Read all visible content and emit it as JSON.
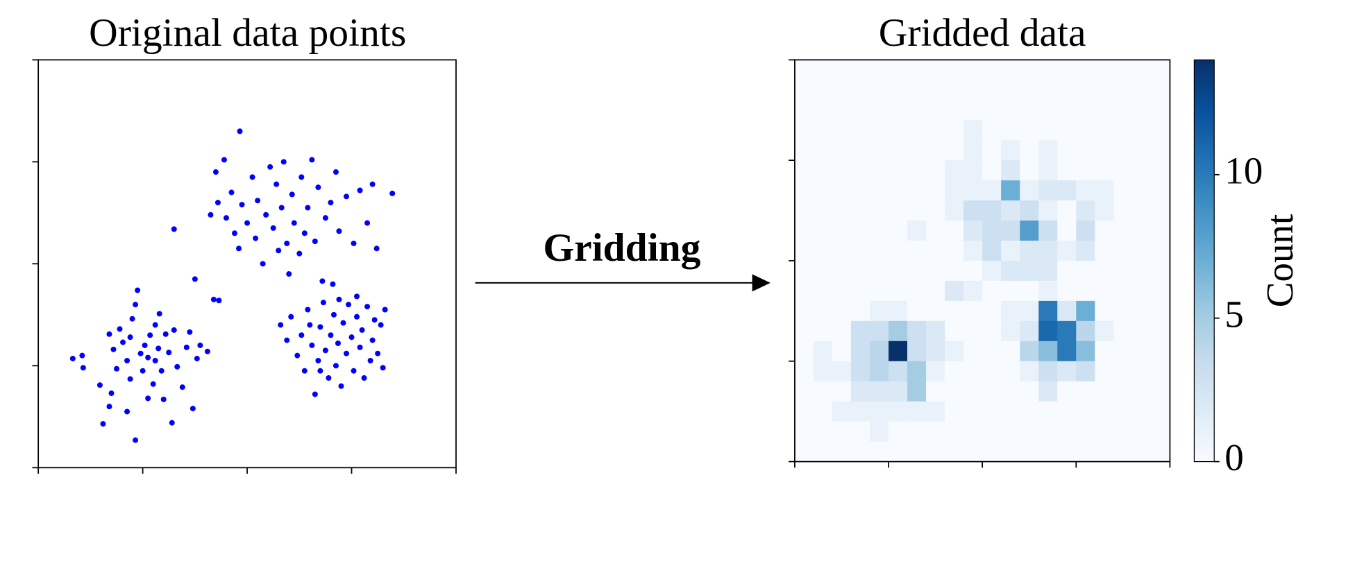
{
  "chart_data": [
    {
      "type": "scatter",
      "title": "Original data points",
      "color": "#0000ff",
      "xlim": [
        0,
        4
      ],
      "xticks": [
        0,
        1,
        2,
        3,
        4
      ],
      "ylim": [
        0,
        4
      ],
      "yticks": [
        0,
        1,
        2,
        3,
        4
      ],
      "x": [
        0.33,
        0.42,
        0.43,
        0.62,
        0.59,
        0.7,
        0.68,
        0.75,
        0.72,
        0.68,
        0.81,
        0.78,
        0.85,
        0.88,
        0.93,
        0.9,
        0.93,
        0.95,
        0.98,
        1.0,
        1.02,
        1.05,
        1.07,
        1.1,
        1.12,
        1.15,
        1.16,
        1.18,
        1.2,
        1.22,
        1.25,
        1.28,
        1.3,
        1.33,
        1.38,
        1.42,
        1.45,
        1.48,
        1.52,
        1.55,
        1.62,
        0.85,
        1.05,
        0.88,
        1.12,
        1.3,
        1.7,
        1.78,
        1.93,
        1.65,
        1.72,
        1.8,
        1.85,
        1.88,
        1.92,
        1.95,
        2.0,
        2.05,
        2.08,
        2.1,
        2.15,
        2.18,
        2.22,
        2.25,
        2.28,
        2.3,
        2.33,
        2.35,
        2.38,
        2.4,
        2.43,
        2.45,
        2.5,
        2.52,
        2.55,
        2.58,
        2.62,
        2.65,
        2.68,
        2.72,
        2.75,
        2.8,
        2.85,
        2.88,
        2.95,
        3.02,
        3.08,
        3.15,
        3.2,
        3.24,
        3.39,
        1.5,
        2.82,
        1.68,
        1.73,
        2.32,
        2.38,
        2.42,
        2.48,
        2.52,
        2.55,
        2.58,
        2.62,
        2.65,
        2.68,
        2.7,
        2.73,
        2.75,
        2.78,
        2.8,
        2.83,
        2.85,
        2.87,
        2.9,
        2.92,
        2.95,
        2.97,
        3.0,
        3.02,
        3.05,
        3.08,
        3.1,
        3.12,
        3.15,
        3.18,
        3.2,
        3.22,
        3.25,
        3.28,
        3.3,
        3.32,
        2.6,
        2.88,
        3.05,
        2.7
      ],
      "y": [
        1.07,
        1.1,
        0.98,
        0.43,
        0.81,
        0.73,
        0.6,
        0.97,
        1.16,
        1.31,
        1.23,
        1.36,
        1.05,
        0.87,
        0.27,
        1.46,
        1.6,
        1.74,
        1.12,
        0.95,
        1.2,
        1.08,
        1.3,
        0.82,
        1.05,
        1.17,
        1.51,
        0.95,
        0.67,
        1.31,
        1.13,
        0.44,
        1.35,
        0.99,
        0.79,
        1.18,
        1.33,
        0.58,
        1.07,
        1.2,
        1.14,
        0.55,
        0.68,
        1.28,
        1.4,
        2.34,
        2.9,
        3.02,
        3.3,
        2.48,
        2.6,
        2.45,
        2.7,
        2.3,
        2.15,
        2.58,
        2.4,
        2.85,
        2.25,
        2.62,
        2.0,
        2.48,
        2.95,
        2.35,
        2.78,
        2.13,
        2.55,
        3.0,
        2.2,
        1.9,
        2.68,
        2.4,
        2.1,
        2.85,
        2.3,
        2.55,
        3.02,
        2.22,
        2.75,
        1.83,
        2.45,
        2.6,
        2.9,
        2.32,
        2.66,
        2.2,
        2.72,
        2.4,
        2.78,
        2.15,
        2.69,
        1.85,
        1.8,
        1.65,
        1.64,
        1.4,
        1.25,
        1.48,
        1.1,
        1.3,
        0.95,
        1.55,
        1.2,
        0.72,
        1.05,
        1.38,
        1.62,
        1.15,
        0.88,
        1.3,
        1.5,
        1.0,
        1.22,
        0.8,
        1.42,
        1.12,
        1.6,
        1.28,
        0.95,
        1.48,
        1.18,
        1.35,
        0.88,
        1.58,
        1.05,
        1.25,
        1.45,
        1.12,
        1.4,
        0.98,
        1.55,
        1.4,
        1.65,
        1.68,
        0.95
      ]
    },
    {
      "type": "heatmap",
      "title": "Gridded data",
      "xlim": [
        0,
        20
      ],
      "xticks": [
        0,
        5,
        10,
        15,
        20
      ],
      "ylim": [
        20,
        0
      ],
      "yticks": [
        0,
        5,
        10,
        15,
        20
      ],
      "colormap": [
        "#f7fbff",
        "#deebf7",
        "#c6dbef",
        "#9ecae1",
        "#6baed6",
        "#4292c6",
        "#2171b5",
        "#08519c",
        "#08306b"
      ],
      "clim": [
        0,
        14
      ],
      "cticks": [
        0,
        5,
        10
      ],
      "colorbar_label": "Count",
      "z": [
        [
          0,
          0,
          0,
          0,
          0,
          0,
          0,
          0,
          0,
          0,
          0,
          0,
          0,
          0,
          0,
          0,
          0,
          0,
          0,
          0
        ],
        [
          0,
          0,
          0,
          0,
          0,
          0,
          0,
          0,
          0,
          0,
          0,
          0,
          0,
          0,
          0,
          0,
          0,
          0,
          0,
          0
        ],
        [
          0,
          0,
          0,
          0,
          0,
          0,
          0,
          0,
          0,
          0,
          0,
          0,
          0,
          0,
          0,
          0,
          0,
          0,
          0,
          0
        ],
        [
          0,
          0,
          0,
          0,
          0,
          0,
          0,
          0,
          0,
          1,
          0,
          0,
          0,
          0,
          0,
          0,
          0,
          0,
          0,
          0
        ],
        [
          0,
          0,
          0,
          0,
          0,
          0,
          0,
          0,
          0,
          1,
          0,
          1,
          0,
          1,
          0,
          0,
          0,
          0,
          0,
          0
        ],
        [
          0,
          0,
          0,
          0,
          0,
          0,
          0,
          0,
          1,
          1,
          0,
          2,
          0,
          1,
          0,
          0,
          0,
          0,
          0,
          0
        ],
        [
          0,
          0,
          0,
          0,
          0,
          0,
          0,
          0,
          1,
          1,
          1,
          7,
          1,
          2,
          2,
          1,
          1,
          0,
          0,
          0
        ],
        [
          0,
          0,
          0,
          0,
          0,
          0,
          0,
          0,
          1,
          3,
          3,
          2,
          3,
          1,
          0,
          2,
          1,
          0,
          0,
          0
        ],
        [
          0,
          0,
          0,
          0,
          0,
          0,
          1,
          0,
          0,
          2,
          3,
          3,
          8,
          3,
          0,
          3,
          0,
          0,
          0,
          0
        ],
        [
          0,
          0,
          0,
          0,
          0,
          0,
          0,
          0,
          0,
          1,
          3,
          1,
          2,
          2,
          1,
          2,
          0,
          0,
          0,
          0
        ],
        [
          0,
          0,
          0,
          0,
          0,
          0,
          0,
          0,
          0,
          0,
          1,
          2,
          2,
          2,
          0,
          0,
          0,
          0,
          0,
          0
        ],
        [
          0,
          0,
          0,
          0,
          0,
          0,
          0,
          0,
          2,
          1,
          0,
          0,
          0,
          1,
          0,
          0,
          0,
          0,
          0,
          0
        ],
        [
          0,
          0,
          0,
          0,
          1,
          1,
          0,
          0,
          0,
          0,
          0,
          1,
          1,
          10,
          2,
          7,
          0,
          0,
          0,
          0
        ],
        [
          0,
          0,
          0,
          3,
          3,
          5,
          3,
          2,
          0,
          0,
          0,
          1,
          2,
          11,
          10,
          4,
          1,
          0,
          0,
          0
        ],
        [
          0,
          1,
          0,
          3,
          4,
          14,
          3,
          2,
          1,
          0,
          0,
          0,
          4,
          6,
          10,
          6,
          0,
          0,
          0,
          0
        ],
        [
          0,
          1,
          1,
          3,
          4,
          3,
          5,
          1,
          0,
          0,
          0,
          0,
          1,
          3,
          2,
          3,
          0,
          0,
          0,
          0
        ],
        [
          0,
          0,
          0,
          2,
          2,
          2,
          5,
          0,
          0,
          0,
          0,
          0,
          0,
          2,
          0,
          0,
          0,
          0,
          0,
          0
        ],
        [
          0,
          0,
          1,
          1,
          1,
          1,
          1,
          1,
          0,
          0,
          0,
          0,
          0,
          0,
          0,
          0,
          0,
          0,
          0,
          0
        ],
        [
          0,
          0,
          0,
          0,
          1,
          0,
          0,
          0,
          0,
          0,
          0,
          0,
          0,
          0,
          0,
          0,
          0,
          0,
          0,
          0
        ],
        [
          0,
          0,
          0,
          0,
          0,
          0,
          0,
          0,
          0,
          0,
          0,
          0,
          0,
          0,
          0,
          0,
          0,
          0,
          0,
          0
        ]
      ]
    }
  ],
  "annotation": "Gridding"
}
